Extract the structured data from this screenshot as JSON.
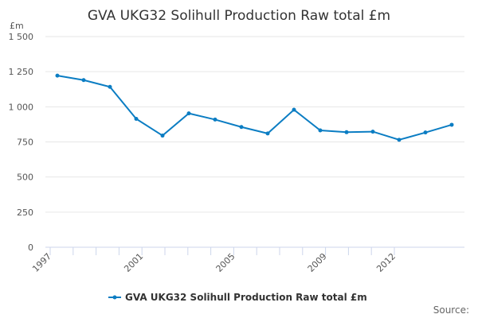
{
  "chart_data": {
    "type": "line",
    "title": "GVA UKG32 Solihull Production Raw total £m",
    "ylabel": "£m",
    "xlabel": "",
    "x": [
      1997,
      1998,
      1999,
      2000,
      2001,
      2002,
      2003,
      2004,
      2005,
      2006,
      2007,
      2008,
      2009,
      2010,
      2011,
      2012
    ],
    "series": [
      {
        "name": "GVA UKG32 Solihull Production Raw total £m",
        "values": [
          1222,
          1190,
          1142,
          914,
          795,
          953,
          909,
          856,
          810,
          979,
          832,
          819,
          823,
          765,
          817,
          872
        ]
      }
    ],
    "ylim": [
      0,
      1500
    ],
    "yticks": [
      0,
      250,
      500,
      750,
      1000,
      1250,
      1500
    ],
    "ytick_labels": [
      "0",
      "250",
      "500",
      "750",
      "1 000",
      "1 250",
      "1 500"
    ],
    "xtick_labels": [
      "1997",
      "2001",
      "2005",
      "2009",
      "2012"
    ],
    "grid": true,
    "legend": "bottom-center",
    "color": "#0b7dc3",
    "source_label": "Source:"
  }
}
